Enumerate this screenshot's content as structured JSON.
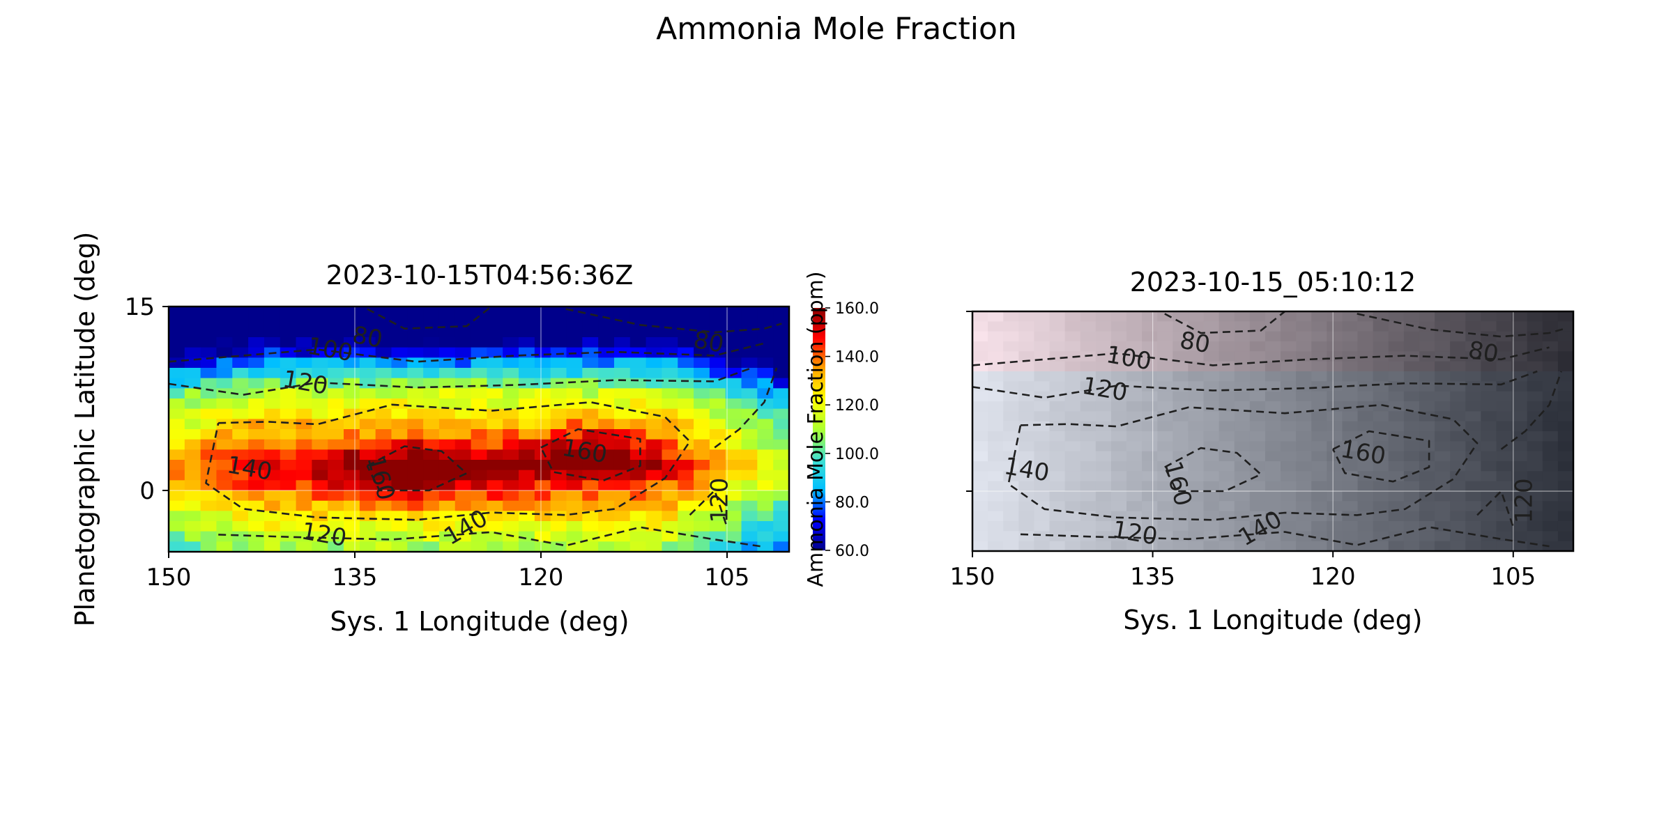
{
  "figure": {
    "title": "Ammonia Mole Fraction"
  },
  "colors": {
    "contour": "#1f1f1f",
    "colormap": [
      "#00008b",
      "#0000ff",
      "#00bfff",
      "#40e0d0",
      "#adff2f",
      "#ffff00",
      "#ffa500",
      "#ff0000",
      "#8b0000"
    ]
  },
  "chart_data": [
    {
      "type": "heatmap",
      "title": "2023-10-15T04:56:36Z",
      "xlabel": "Sys. 1 Longitude (deg)",
      "ylabel": "Planetographic Latitude (deg)",
      "xlim": [
        150,
        100
      ],
      "ylim": [
        -5,
        15
      ],
      "xticks": [
        150,
        135,
        120,
        105
      ],
      "yticks": [
        0,
        15
      ],
      "grid": true,
      "colorbar": {
        "label": "Ammonia Mole Fraction (ppm)",
        "range": [
          60,
          160
        ],
        "ticks": [
          "60.0",
          "80.0",
          "100.0",
          "120.0",
          "140.0",
          "160.0"
        ]
      },
      "contour_levels": [
        80,
        100,
        120,
        140,
        160
      ],
      "contour_labels": [
        {
          "text": "80",
          "lon": 134,
          "lat": 12.4
        },
        {
          "text": "80",
          "lon": 106.5,
          "lat": 12.0
        },
        {
          "text": "100",
          "lon": 137,
          "lat": 11.4
        },
        {
          "text": "120",
          "lon": 139,
          "lat": 8.7
        },
        {
          "text": "140",
          "lon": 143.5,
          "lat": 1.7
        },
        {
          "text": "160",
          "lon": 133,
          "lat": 1.0
        },
        {
          "text": "160",
          "lon": 116.5,
          "lat": 3.1
        },
        {
          "text": "120",
          "lon": 137.5,
          "lat": -3.7
        },
        {
          "text": "140",
          "lon": 126,
          "lat": -3.1
        },
        {
          "text": "120",
          "lon": 105.5,
          "lat": -0.8
        }
      ]
    },
    {
      "type": "heatmap",
      "title": "2023-10-15_05:10:12",
      "xlabel": "Sys. 1 Longitude (deg)",
      "ylabel": "",
      "xlim": [
        150,
        100
      ],
      "ylim": [
        -5,
        15
      ],
      "xticks": [
        150,
        135,
        120,
        105
      ],
      "yticks": [
        0,
        15
      ],
      "grid": true,
      "contour_levels": [
        80,
        100,
        120,
        140,
        160
      ],
      "contour_labels": [
        {
          "text": "80",
          "lon": 131.5,
          "lat": 12.3
        },
        {
          "text": "80",
          "lon": 107.5,
          "lat": 11.5
        },
        {
          "text": "100",
          "lon": 137,
          "lat": 11.0
        },
        {
          "text": "120",
          "lon": 139,
          "lat": 8.4
        },
        {
          "text": "140",
          "lon": 145.5,
          "lat": 1.7
        },
        {
          "text": "160",
          "lon": 133,
          "lat": 0.6
        },
        {
          "text": "160",
          "lon": 117.5,
          "lat": 3.1
        },
        {
          "text": "120",
          "lon": 136.5,
          "lat": -3.6
        },
        {
          "text": "140",
          "lon": 126,
          "lat": -3.2
        },
        {
          "text": "120",
          "lon": 104,
          "lat": -0.8
        }
      ]
    }
  ]
}
